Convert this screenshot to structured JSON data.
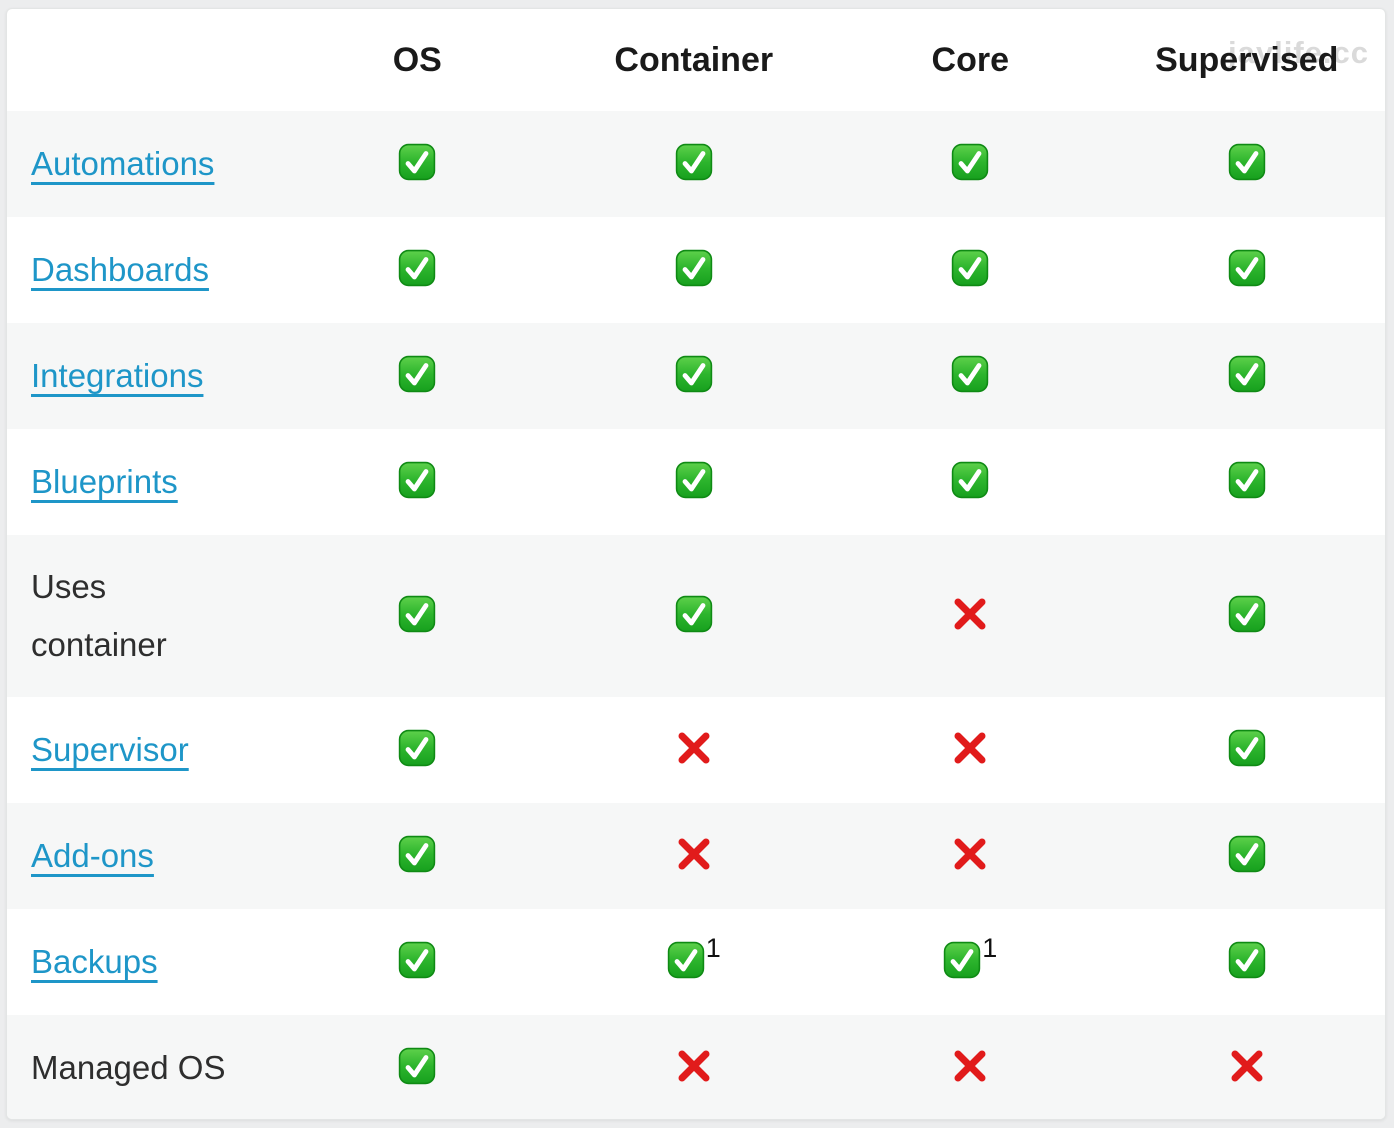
{
  "watermark": {
    "text": "jaylife.cc"
  },
  "colors": {
    "link_blue": "#1e96c8",
    "check_green": "#2db52d",
    "cross_red": "#e11b1b",
    "row_stripe": "#f6f7f7",
    "header_text": "#1a1a1a"
  },
  "table": {
    "headers": [
      {
        "label": ""
      },
      {
        "label": "OS"
      },
      {
        "label": "Container"
      },
      {
        "label": "Core"
      },
      {
        "label": "Supervised"
      }
    ],
    "rows": [
      {
        "label": "Automations",
        "is_link": true,
        "cells": [
          {
            "icon": "check"
          },
          {
            "icon": "check"
          },
          {
            "icon": "check"
          },
          {
            "icon": "check"
          }
        ]
      },
      {
        "label": "Dashboards",
        "is_link": true,
        "cells": [
          {
            "icon": "check"
          },
          {
            "icon": "check"
          },
          {
            "icon": "check"
          },
          {
            "icon": "check"
          }
        ]
      },
      {
        "label": "Integrations",
        "is_link": true,
        "cells": [
          {
            "icon": "check"
          },
          {
            "icon": "check"
          },
          {
            "icon": "check"
          },
          {
            "icon": "check"
          }
        ]
      },
      {
        "label": "Blueprints",
        "is_link": true,
        "cells": [
          {
            "icon": "check"
          },
          {
            "icon": "check"
          },
          {
            "icon": "check"
          },
          {
            "icon": "check"
          }
        ]
      },
      {
        "label": "Uses\ncontainer",
        "is_link": false,
        "cells": [
          {
            "icon": "check"
          },
          {
            "icon": "check"
          },
          {
            "icon": "cross"
          },
          {
            "icon": "check"
          }
        ]
      },
      {
        "label": "Supervisor",
        "is_link": true,
        "cells": [
          {
            "icon": "check"
          },
          {
            "icon": "cross"
          },
          {
            "icon": "cross"
          },
          {
            "icon": "check"
          }
        ]
      },
      {
        "label": "Add-ons",
        "is_link": true,
        "cells": [
          {
            "icon": "check"
          },
          {
            "icon": "cross"
          },
          {
            "icon": "cross"
          },
          {
            "icon": "check"
          }
        ]
      },
      {
        "label": "Backups",
        "is_link": true,
        "cells": [
          {
            "icon": "check"
          },
          {
            "icon": "check",
            "sup": "1"
          },
          {
            "icon": "check",
            "sup": "1"
          },
          {
            "icon": "check"
          }
        ]
      },
      {
        "label": "Managed OS",
        "is_link": false,
        "cells": [
          {
            "icon": "check"
          },
          {
            "icon": "cross"
          },
          {
            "icon": "cross"
          },
          {
            "icon": "cross"
          }
        ]
      }
    ]
  }
}
